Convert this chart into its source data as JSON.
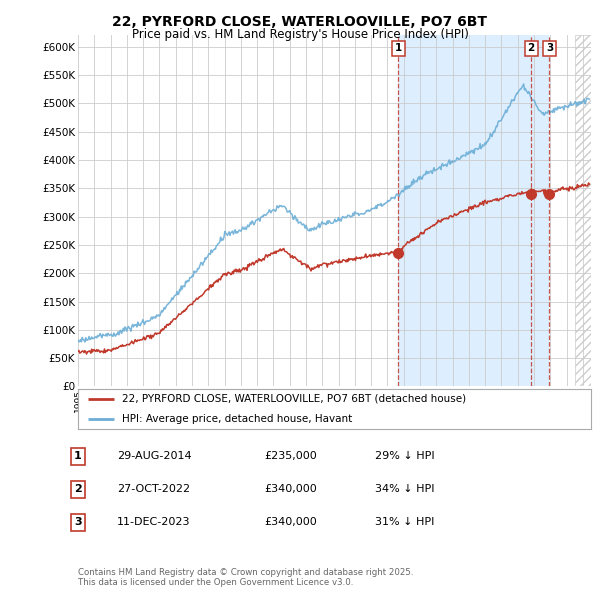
{
  "title": "22, PYRFORD CLOSE, WATERLOOVILLE, PO7 6BT",
  "subtitle": "Price paid vs. HM Land Registry's House Price Index (HPI)",
  "ylabel_ticks": [
    "£0",
    "£50K",
    "£100K",
    "£150K",
    "£200K",
    "£250K",
    "£300K",
    "£350K",
    "£400K",
    "£450K",
    "£500K",
    "£550K",
    "£600K"
  ],
  "ytick_values": [
    0,
    50000,
    100000,
    150000,
    200000,
    250000,
    300000,
    350000,
    400000,
    450000,
    500000,
    550000,
    600000
  ],
  "hpi_color": "#6baed6",
  "price_color": "#c0392b",
  "vline_color": "#c0392b",
  "highlight_color": "#ddeeff",
  "grid_color": "#cccccc",
  "legend_label_red": "22, PYRFORD CLOSE, WATERLOOVILLE, PO7 6BT (detached house)",
  "legend_label_blue": "HPI: Average price, detached house, Havant",
  "transactions": [
    {
      "label": "1",
      "date": "29-AUG-2014",
      "price": "£235,000",
      "pct": "29% ↓ HPI"
    },
    {
      "label": "2",
      "date": "27-OCT-2022",
      "price": "£340,000",
      "pct": "34% ↓ HPI"
    },
    {
      "label": "3",
      "date": "11-DEC-2023",
      "price": "£340,000",
      "pct": "31% ↓ HPI"
    }
  ],
  "transaction_dates_num": [
    2014.66,
    2022.83,
    2023.95
  ],
  "transaction_price_vals": [
    235000,
    340000,
    340000
  ],
  "footnote": "Contains HM Land Registry data © Crown copyright and database right 2025.\nThis data is licensed under the Open Government Licence v3.0.",
  "xlim": [
    1995.0,
    2026.5
  ],
  "ylim": [
    0,
    620000
  ],
  "fig_width": 6.0,
  "fig_height": 5.9,
  "dpi": 100
}
